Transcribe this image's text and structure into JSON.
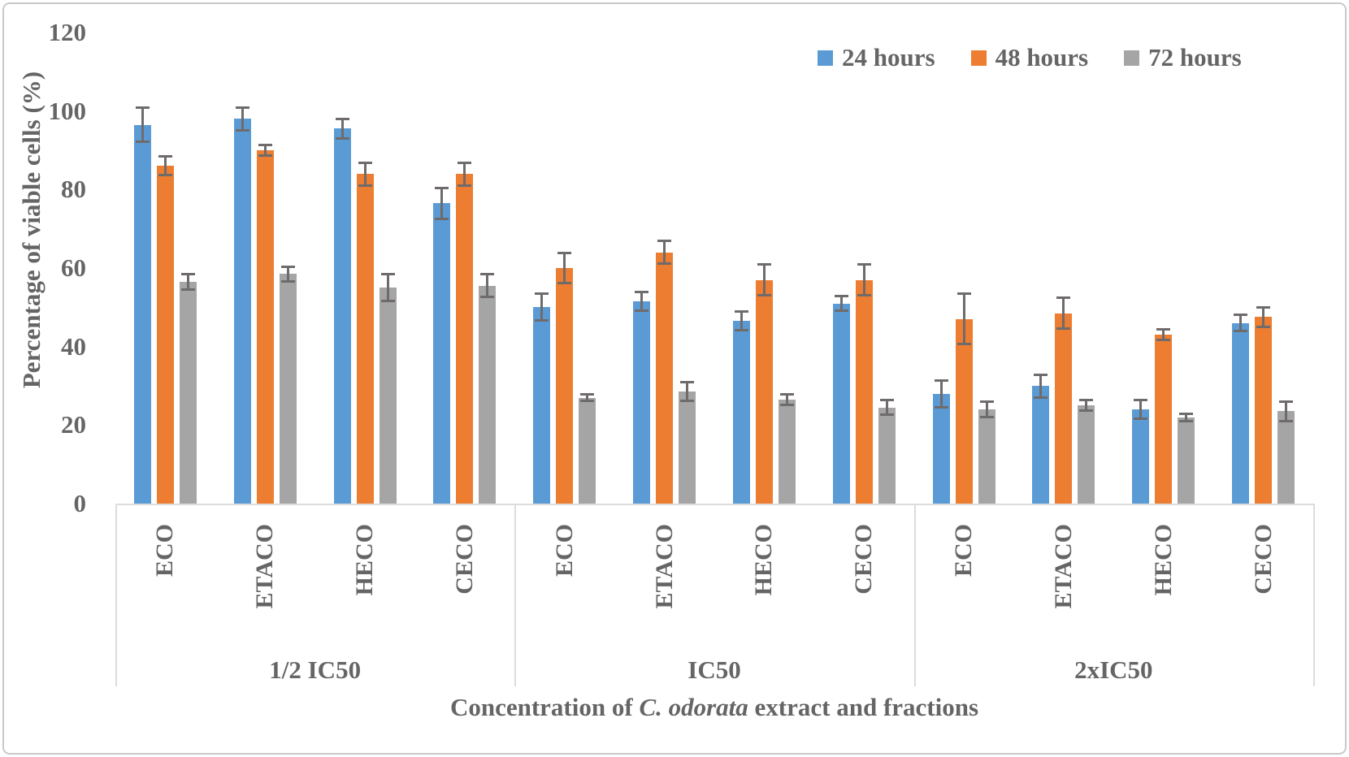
{
  "figure": {
    "y_axis_title": "Percentage of viable cells (%)",
    "x_axis_title": "Concentration of C. odorata extract and fractions",
    "x_axis_title_parts": {
      "prefix": "Concentration of ",
      "italic": "C. odorata",
      "suffix": " extract and fractions"
    }
  },
  "chart_data": {
    "type": "bar",
    "title": "",
    "ylabel": "Percentage of viable cells (%)",
    "xlabel": "Concentration of C. odorata extract and fractions",
    "ylim": [
      0,
      120
    ],
    "yticks": [
      0,
      20,
      40,
      60,
      80,
      100,
      120
    ],
    "grid": false,
    "legend_position": "top-right",
    "error_bar_color": "#6f6b6b",
    "axis_line_color": "#dcdcdc",
    "text_color": "#656565",
    "groups": [
      {
        "label": "1/2 IC50",
        "categories": [
          "ECO",
          "ETACO",
          "HECO",
          "CECO"
        ]
      },
      {
        "label": "IC50",
        "categories": [
          "ECO",
          "ETACO",
          "HECO",
          "CECO"
        ]
      },
      {
        "label": "2xIC50",
        "categories": [
          "ECO",
          "ETACO",
          "HECO",
          "CECO"
        ]
      }
    ],
    "series": [
      {
        "name": "24 hours",
        "color": "#5B9BD5",
        "values": [
          [
            96.5,
            98,
            95.5,
            76.5
          ],
          [
            50,
            51.5,
            46.5,
            51
          ],
          [
            28,
            30,
            24,
            46
          ]
        ],
        "errors": [
          [
            4.5,
            3,
            2.5,
            4
          ],
          [
            3.5,
            2.5,
            2.5,
            2
          ],
          [
            3.5,
            3,
            2.5,
            2.2
          ]
        ]
      },
      {
        "name": "48 hours",
        "color": "#ED7D31",
        "values": [
          [
            86,
            90,
            84,
            84
          ],
          [
            60,
            64,
            57,
            57
          ],
          [
            47,
            48.5,
            43,
            47.5
          ]
        ],
        "errors": [
          [
            2.5,
            1.5,
            3,
            3
          ],
          [
            4,
            3,
            4,
            4
          ],
          [
            6.5,
            4,
            1.5,
            2.5
          ]
        ]
      },
      {
        "name": "72 hours",
        "color": "#A5A5A5",
        "values": [
          [
            56.5,
            58.5,
            55,
            55.5
          ],
          [
            27,
            28.5,
            26.5,
            24.5
          ],
          [
            24,
            25,
            22,
            23.5
          ]
        ],
        "errors": [
          [
            2,
            2,
            3.5,
            3
          ],
          [
            1,
            2.5,
            1.5,
            2
          ],
          [
            2,
            1.5,
            1,
            2.5
          ]
        ]
      }
    ]
  }
}
